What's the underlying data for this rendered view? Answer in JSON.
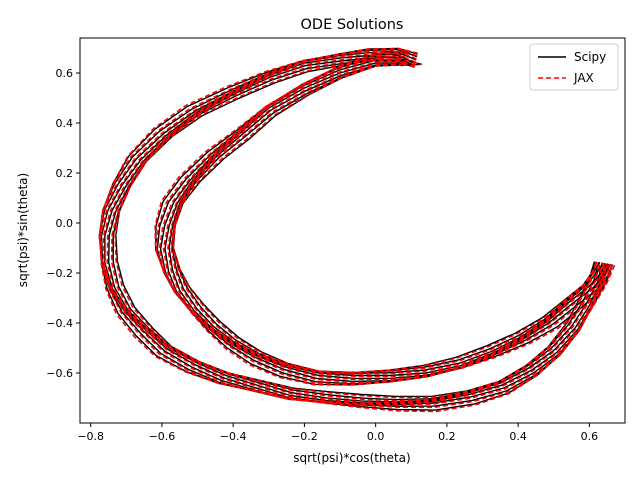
{
  "chart_data": {
    "type": "line",
    "title": "ODE Solutions",
    "xlabel": "sqrt(psi)*cos(theta)",
    "ylabel": "sqrt(psi)*sin(theta)",
    "xlim": [
      -0.83,
      0.7
    ],
    "ylim": [
      -0.8,
      0.74
    ],
    "xticks": [
      -0.8,
      -0.6,
      -0.4,
      -0.2,
      0.0,
      0.2,
      0.4,
      0.6
    ],
    "xtick_labels": [
      "−0.8",
      "−0.6",
      "−0.4",
      "−0.2",
      "0.0",
      "0.2",
      "0.4",
      "0.6"
    ],
    "yticks": [
      -0.6,
      -0.4,
      -0.2,
      0.0,
      0.2,
      0.4,
      0.6
    ],
    "ytick_labels": [
      "−0.6",
      "−0.4",
      "−0.2",
      "0.0",
      "0.2",
      "0.4",
      "0.6"
    ],
    "grid": false,
    "legend_position": "top-right",
    "series": [
      {
        "name": "Scipy",
        "color": "#000000",
        "style": "solid"
      },
      {
        "name": "JAX",
        "color": "#ff0000",
        "style": "dashed"
      }
    ],
    "orbit_outer": {
      "x": [
        0.11,
        0.06,
        -0.02,
        -0.1,
        -0.2,
        -0.3,
        -0.4,
        -0.5,
        -0.58,
        -0.65,
        -0.7,
        -0.74,
        -0.76,
        -0.76,
        -0.74,
        -0.7,
        -0.64,
        -0.58,
        -0.5,
        -0.42,
        -0.33,
        -0.24,
        -0.14,
        -0.04,
        0.06,
        0.16,
        0.26,
        0.35,
        0.43,
        0.5,
        0.56,
        0.6,
        0.63,
        0.64
      ],
      "y": [
        0.63,
        0.66,
        0.67,
        0.66,
        0.64,
        0.59,
        0.52,
        0.44,
        0.35,
        0.25,
        0.15,
        0.05,
        -0.05,
        -0.16,
        -0.26,
        -0.35,
        -0.43,
        -0.5,
        -0.56,
        -0.61,
        -0.65,
        -0.69,
        -0.71,
        -0.72,
        -0.72,
        -0.71,
        -0.68,
        -0.64,
        -0.58,
        -0.51,
        -0.42,
        -0.33,
        -0.24,
        -0.16
      ]
    },
    "orbit_inner": {
      "x": [
        0.08,
        0.0,
        -0.1,
        -0.2,
        -0.3,
        -0.38,
        -0.45,
        -0.51,
        -0.55,
        -0.57,
        -0.58,
        -0.57,
        -0.55,
        -0.51,
        -0.46,
        -0.4,
        -0.33,
        -0.25,
        -0.16,
        -0.06,
        0.04,
        0.14,
        0.24,
        0.33,
        0.41,
        0.48,
        0.54,
        0.59,
        0.62,
        0.64
      ],
      "y": [
        0.64,
        0.64,
        0.6,
        0.54,
        0.46,
        0.36,
        0.27,
        0.17,
        0.08,
        -0.01,
        -0.1,
        -0.19,
        -0.27,
        -0.35,
        -0.42,
        -0.48,
        -0.53,
        -0.57,
        -0.6,
        -0.61,
        -0.61,
        -0.6,
        -0.57,
        -0.52,
        -0.46,
        -0.39,
        -0.31,
        -0.25,
        -0.2,
        -0.16
      ]
    },
    "orbit_spread": [
      0.0,
      0.012,
      -0.012,
      0.024,
      -0.024,
      0.036,
      -0.036,
      0.048
    ]
  }
}
